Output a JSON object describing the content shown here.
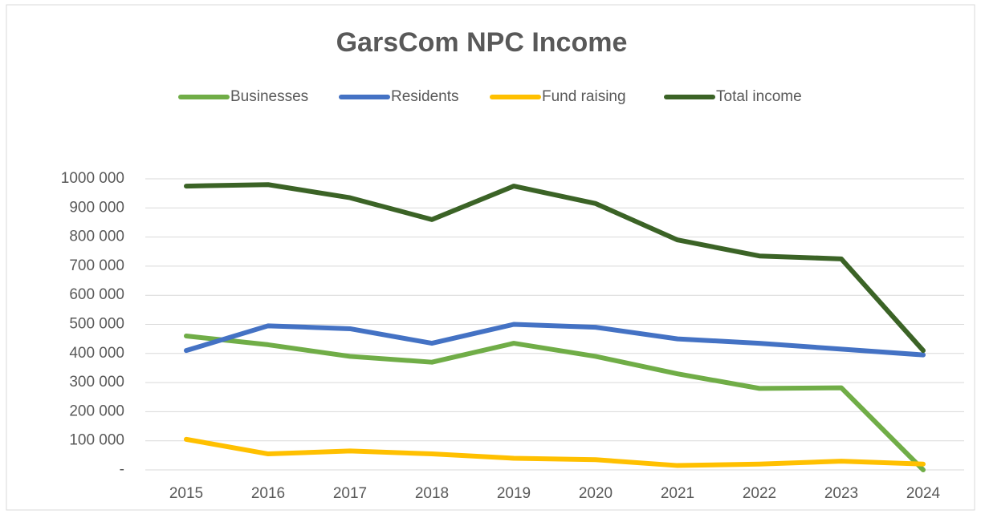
{
  "chart_data": {
    "type": "line",
    "title": "GarsCom NPC Income",
    "categories": [
      "2015",
      "2016",
      "2017",
      "2018",
      "2019",
      "2020",
      "2021",
      "2022",
      "2023",
      "2024"
    ],
    "series": [
      {
        "name": "Businesses",
        "color": "#70ad47",
        "values": [
          460000,
          430000,
          390000,
          370000,
          435000,
          390000,
          330000,
          280000,
          282000,
          0
        ]
      },
      {
        "name": "Residents",
        "color": "#4472c4",
        "values": [
          410000,
          495000,
          485000,
          435000,
          500000,
          490000,
          450000,
          435000,
          415000,
          395000
        ]
      },
      {
        "name": "Fund raising",
        "color": "#ffc000",
        "values": [
          105000,
          55000,
          65000,
          55000,
          40000,
          35000,
          15000,
          20000,
          30000,
          20000
        ]
      },
      {
        "name": "Total income",
        "color": "#3b6326",
        "values": [
          975000,
          980000,
          935000,
          860000,
          975000,
          915000,
          790000,
          735000,
          725000,
          410000
        ]
      }
    ],
    "ylim": [
      0,
      1000000
    ],
    "yticks": [
      {
        "value": 0,
        "label": "-"
      },
      {
        "value": 100000,
        "label": "100 000"
      },
      {
        "value": 200000,
        "label": "200 000"
      },
      {
        "value": 300000,
        "label": "300 000"
      },
      {
        "value": 400000,
        "label": "400 000"
      },
      {
        "value": 500000,
        "label": "500 000"
      },
      {
        "value": 600000,
        "label": "600 000"
      },
      {
        "value": 700000,
        "label": "700 000"
      },
      {
        "value": 800000,
        "label": "800 000"
      },
      {
        "value": 900000,
        "label": "900 000"
      },
      {
        "value": 1000000,
        "label": "1000 000"
      }
    ],
    "grid": true,
    "legend": "top"
  }
}
